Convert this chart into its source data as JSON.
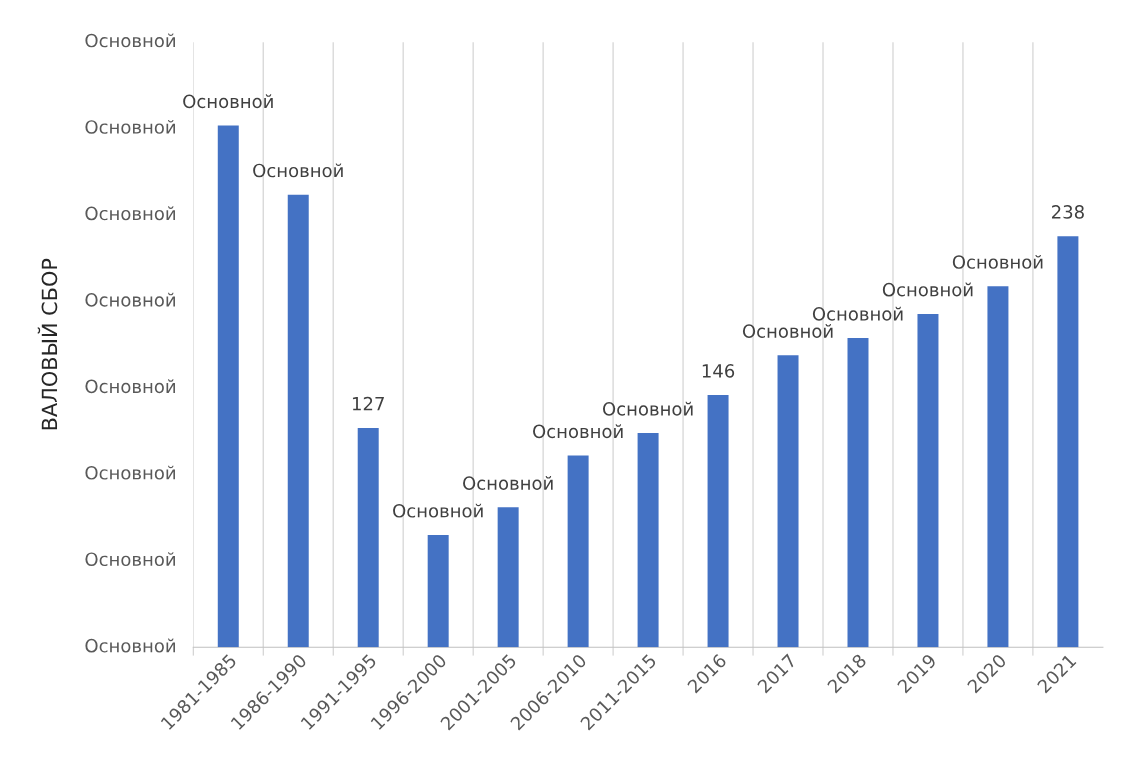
{
  "chart_data": {
    "type": "bar",
    "ylabel": "ВАЛОВЫЙ СБОР",
    "categories": [
      "1981-1985",
      "1986-1990",
      "1991-1995",
      "1996-2000",
      "2001-2005",
      "2006-2010",
      "2011-2015",
      "2016",
      "2017",
      "2018",
      "2019",
      "2020",
      "2021"
    ],
    "values": [
      302,
      262,
      127,
      65,
      81,
      111,
      124,
      146,
      169,
      179,
      193,
      209,
      238
    ],
    "value_labels": [
      "Основной",
      "Основной",
      "127",
      "Основной",
      "Основной",
      "Основной",
      "Основной",
      "146",
      "Основной",
      "Основной",
      "Основной",
      "Основной",
      "238"
    ],
    "color": "#4472c4",
    "annotations": [
      "Основной",
      "Основной",
      "Основной",
      "Основной",
      "Основной",
      "Основной",
      "Основной",
      "Основной"
    ],
    "grid": "x"
  }
}
